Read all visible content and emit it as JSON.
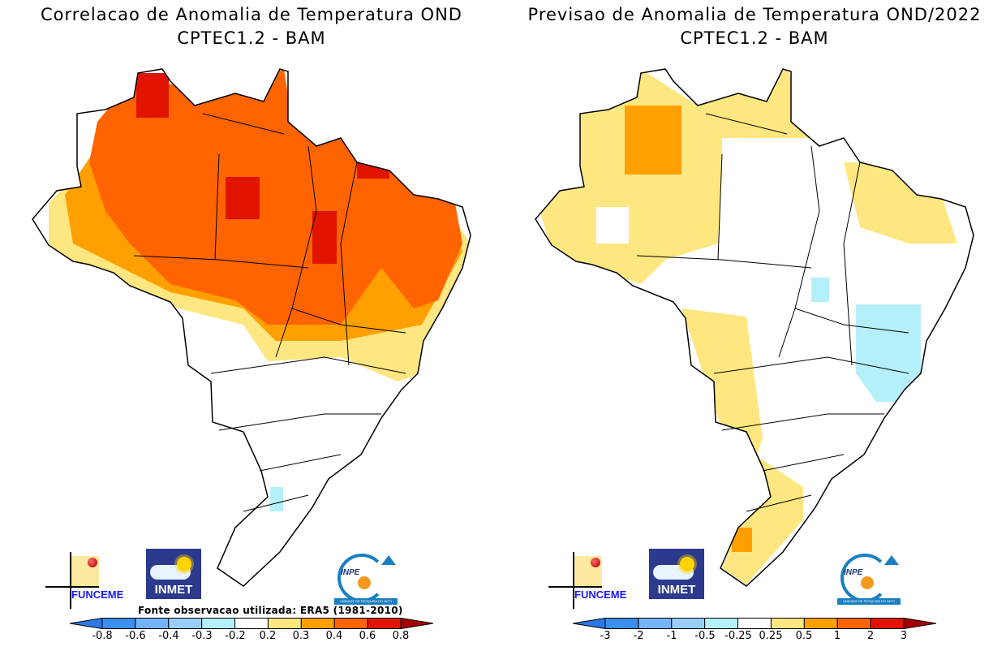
{
  "left_panel": {
    "title_line1": "Correlacao de Anomalia de Temperatura OND",
    "title_line2": "CPTEC1.2 - BAM",
    "source_note": "Fonte observacao utilizada: ERA5 (1981-2010)",
    "colorbar_labels": [
      "-0.8",
      "-0.6",
      "-0.4",
      "-0.3",
      "-0.2",
      "0.2",
      "0.3",
      "0.4",
      "0.6",
      "0.8"
    ]
  },
  "right_panel": {
    "title_line1": "Previsao de Anomalia de Temperatura OND/2022",
    "title_line2": "CPTEC1.2 - BAM",
    "colorbar_labels": [
      "-3",
      "-2",
      "-1",
      "-0.5",
      "-0.25",
      "0.25",
      "0.5",
      "1",
      "2",
      "3"
    ]
  },
  "logos": {
    "funceme": "FUNCEME",
    "inmet": "INMET",
    "inpe": "INPE",
    "inpe_tagline": "UNIDADE DE PESQUISA DO MCTI"
  },
  "colors": {
    "scale": [
      "#2a78e4",
      "#3c8ef0",
      "#74b4f6",
      "#98cef8",
      "#b4f0fa",
      "#ffffff",
      "#fee680",
      "#ffa000",
      "#ff6400",
      "#e11400",
      "#a50000"
    ]
  }
}
